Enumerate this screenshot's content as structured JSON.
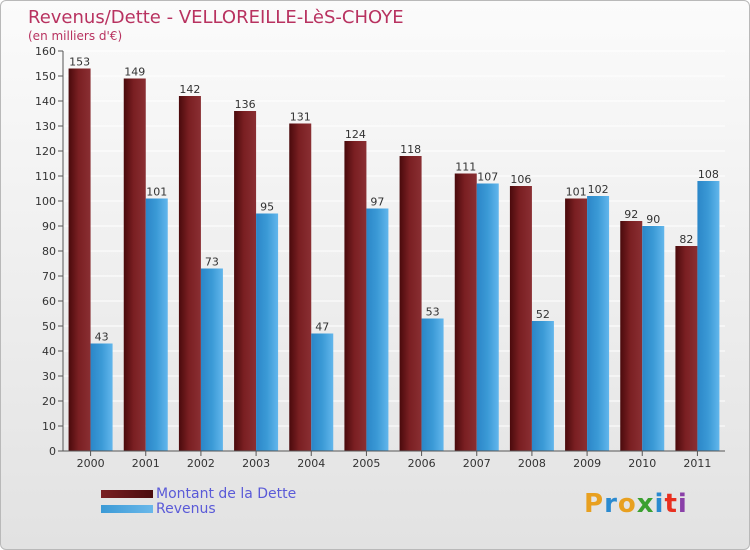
{
  "title": "Revenus/Dette - VELLOREILLE-LèS-CHOYE",
  "subtitle": "(en milliers d'€)",
  "logo": {
    "letters": [
      "P",
      "r",
      "o",
      "x",
      "i",
      "t",
      "i"
    ],
    "colors": [
      "#e8a020",
      "#2a8ad0",
      "#e8a020",
      "#3aa030",
      "#2a8ad0",
      "#e83020",
      "#8a40a8"
    ]
  },
  "colors": {
    "dette": "#7a1f22",
    "revenus": "#3b9ad6",
    "axis": "#555555",
    "grid": "#ffffff"
  },
  "legend": {
    "dette_label": "Montant de la Dette",
    "revenus_label": "Revenus"
  },
  "chart_data": {
    "type": "bar",
    "categories": [
      "2000",
      "2001",
      "2002",
      "2003",
      "2004",
      "2005",
      "2006",
      "2007",
      "2008",
      "2009",
      "2010",
      "2011"
    ],
    "series": [
      {
        "name": "Montant de la Dette",
        "values": [
          153,
          149,
          142,
          136,
          131,
          124,
          118,
          111,
          106,
          101,
          92,
          82
        ]
      },
      {
        "name": "Revenus",
        "values": [
          43,
          101,
          73,
          95,
          47,
          97,
          53,
          107,
          52,
          102,
          90,
          108
        ]
      }
    ],
    "ylim": [
      0,
      160
    ],
    "yticks": [
      0,
      10,
      20,
      30,
      40,
      50,
      60,
      70,
      80,
      90,
      100,
      110,
      120,
      130,
      140,
      150,
      160
    ],
    "grid": true,
    "legend_position": "bottom-left"
  }
}
